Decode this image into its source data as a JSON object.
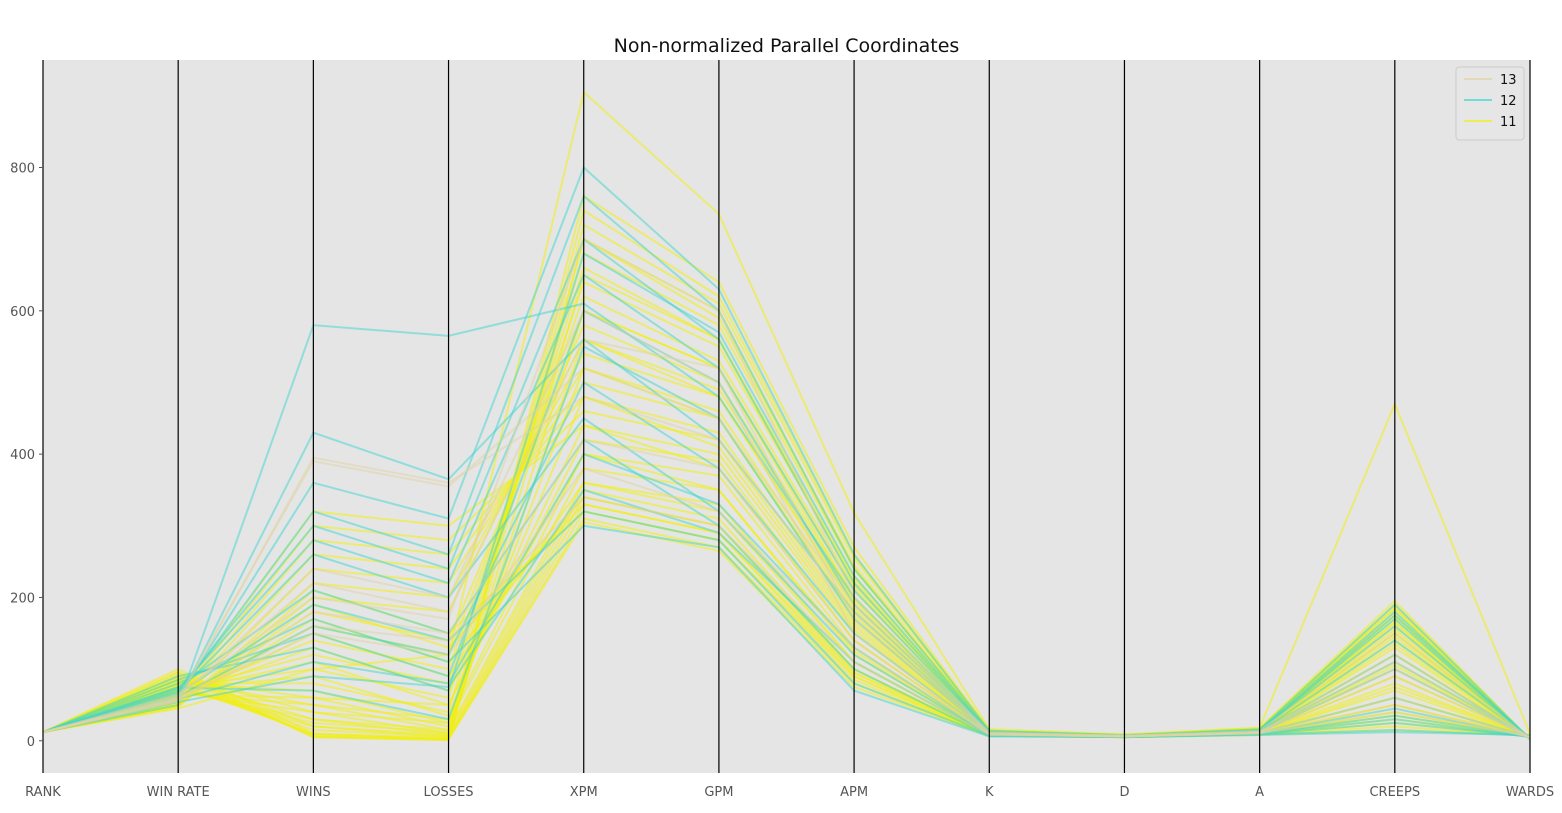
{
  "chart_data": {
    "type": "parallel-coordinates",
    "title": "Non-normalized Parallel Coordinates",
    "axes": [
      "RANK",
      "WIN RATE",
      "WINS",
      "LOSSES",
      "XPM",
      "GPM",
      "APM",
      "K",
      "D",
      "A",
      "CREEPS",
      "WARDS"
    ],
    "ylim": [
      -45,
      950
    ],
    "yticks": [
      0,
      200,
      400,
      600,
      800
    ],
    "grid": false,
    "legend_position": "top-right",
    "series": [
      {
        "name": "13",
        "color": "#e0d3a3",
        "lines": [
          [
            12,
            55,
            395,
            360,
            480,
            420,
            180,
            10,
            6,
            12,
            110,
            4
          ],
          [
            12,
            60,
            390,
            355,
            520,
            450,
            190,
            11,
            7,
            12,
            120,
            4
          ],
          [
            12,
            58,
            240,
            200,
            600,
            500,
            150,
            9,
            6,
            11,
            90,
            5
          ],
          [
            12,
            62,
            220,
            180,
            560,
            520,
            170,
            10,
            7,
            12,
            100,
            4
          ],
          [
            12,
            57,
            180,
            150,
            420,
            380,
            140,
            9,
            6,
            11,
            60,
            5
          ],
          [
            12,
            65,
            200,
            170,
            700,
            600,
            200,
            12,
            7,
            14,
            150,
            3
          ],
          [
            12,
            55,
            160,
            140,
            340,
            300,
            110,
            8,
            6,
            10,
            40,
            6
          ],
          [
            12,
            59,
            150,
            120,
            380,
            320,
            130,
            9,
            6,
            11,
            50,
            5
          ]
        ]
      },
      {
        "name": "12",
        "color": "#3dd6d0",
        "lines": [
          [
            12,
            50,
            580,
            565,
            610,
            480,
            200,
            11,
            7,
            13,
            120,
            3
          ],
          [
            12,
            55,
            430,
            365,
            560,
            420,
            180,
            10,
            6,
            12,
            110,
            4
          ],
          [
            12,
            60,
            360,
            310,
            800,
            630,
            260,
            14,
            8,
            16,
            190,
            2
          ],
          [
            12,
            65,
            320,
            260,
            760,
            600,
            240,
            13,
            7,
            15,
            180,
            2
          ],
          [
            12,
            70,
            300,
            240,
            700,
            560,
            220,
            12,
            7,
            14,
            170,
            3
          ],
          [
            12,
            72,
            280,
            220,
            650,
            520,
            210,
            12,
            7,
            14,
            160,
            3
          ],
          [
            12,
            68,
            260,
            200,
            450,
            320,
            120,
            8,
            6,
            10,
            30,
            5
          ],
          [
            12,
            75,
            210,
            150,
            420,
            300,
            100,
            7,
            5,
            9,
            25,
            6
          ],
          [
            12,
            66,
            190,
            140,
            320,
            280,
            80,
            7,
            5,
            9,
            15,
            7
          ],
          [
            12,
            80,
            170,
            110,
            300,
            270,
            70,
            6,
            5,
            8,
            12,
            8
          ],
          [
            12,
            62,
            160,
            120,
            500,
            380,
            150,
            9,
            6,
            11,
            60,
            5
          ],
          [
            12,
            85,
            150,
            90,
            600,
            500,
            190,
            11,
            7,
            13,
            140,
            4
          ],
          [
            12,
            90,
            130,
            70,
            680,
            570,
            230,
            12,
            7,
            14,
            175,
            3
          ],
          [
            12,
            58,
            110,
            80,
            400,
            330,
            130,
            8,
            6,
            10,
            45,
            5
          ],
          [
            12,
            54,
            90,
            75,
            350,
            290,
            110,
            8,
            6,
            10,
            35,
            6
          ],
          [
            12,
            74,
            70,
            30,
            550,
            450,
            170,
            10,
            6,
            12,
            100,
            4
          ]
        ]
      },
      {
        "name": "11",
        "color": "#f0ee12",
        "lines": [
          [
            12,
            45,
            100,
            120,
            905,
            735,
            318,
            16,
            9,
            18,
            470,
            10
          ],
          [
            12,
            100,
            10,
            2,
            760,
            640,
            270,
            15,
            8,
            18,
            195,
            2
          ],
          [
            12,
            95,
            20,
            5,
            740,
            620,
            260,
            14,
            8,
            17,
            190,
            2
          ],
          [
            12,
            90,
            40,
            10,
            720,
            610,
            255,
            14,
            8,
            17,
            185,
            2
          ],
          [
            12,
            85,
            60,
            20,
            700,
            590,
            245,
            13,
            8,
            16,
            180,
            3
          ],
          [
            12,
            80,
            80,
            40,
            680,
            580,
            240,
            13,
            7,
            16,
            175,
            3
          ],
          [
            12,
            75,
            100,
            60,
            660,
            560,
            230,
            13,
            7,
            15,
            170,
            3
          ],
          [
            12,
            70,
            120,
            80,
            640,
            550,
            225,
            12,
            7,
            15,
            165,
            3
          ],
          [
            12,
            65,
            140,
            100,
            620,
            530,
            215,
            12,
            7,
            14,
            160,
            4
          ],
          [
            12,
            60,
            160,
            120,
            600,
            520,
            210,
            12,
            7,
            14,
            155,
            4
          ],
          [
            12,
            55,
            180,
            140,
            580,
            500,
            200,
            11,
            7,
            13,
            150,
            4
          ],
          [
            12,
            50,
            200,
            180,
            560,
            490,
            195,
            11,
            7,
            13,
            145,
            4
          ],
          [
            12,
            48,
            220,
            200,
            540,
            480,
            190,
            11,
            6,
            13,
            140,
            4
          ],
          [
            12,
            52,
            240,
            220,
            520,
            460,
            180,
            10,
            6,
            12,
            130,
            4
          ],
          [
            12,
            56,
            260,
            240,
            500,
            450,
            175,
            10,
            6,
            12,
            120,
            5
          ],
          [
            12,
            58,
            280,
            260,
            480,
            430,
            165,
            10,
            6,
            12,
            110,
            5
          ],
          [
            12,
            60,
            300,
            280,
            460,
            420,
            160,
            9,
            6,
            11,
            100,
            5
          ],
          [
            12,
            62,
            320,
            300,
            440,
            400,
            150,
            9,
            6,
            11,
            90,
            5
          ],
          [
            12,
            64,
            60,
            50,
            420,
            390,
            140,
            9,
            6,
            11,
            80,
            5
          ],
          [
            12,
            66,
            50,
            30,
            400,
            370,
            130,
            9,
            6,
            10,
            70,
            5
          ],
          [
            12,
            68,
            40,
            25,
            380,
            350,
            120,
            8,
            6,
            10,
            60,
            6
          ],
          [
            12,
            70,
            30,
            15,
            360,
            330,
            110,
            8,
            6,
            10,
            50,
            6
          ],
          [
            12,
            72,
            25,
            12,
            350,
            310,
            100,
            8,
            6,
            10,
            40,
            6
          ],
          [
            12,
            74,
            20,
            8,
            340,
            300,
            95,
            8,
            5,
            9,
            35,
            6
          ],
          [
            12,
            76,
            15,
            6,
            330,
            290,
            90,
            7,
            5,
            9,
            30,
            7
          ],
          [
            12,
            78,
            10,
            4,
            320,
            280,
            85,
            7,
            5,
            9,
            25,
            7
          ],
          [
            12,
            82,
            8,
            3,
            310,
            270,
            80,
            7,
            5,
            9,
            20,
            7
          ],
          [
            12,
            88,
            6,
            2,
            305,
            265,
            75,
            7,
            5,
            8,
            15,
            8
          ],
          [
            12,
            92,
            5,
            1,
            700,
            600,
            240,
            14,
            8,
            16,
            185,
            2
          ],
          [
            12,
            96,
            5,
            1,
            650,
            560,
            220,
            13,
            7,
            15,
            175,
            3
          ],
          [
            12,
            86,
            30,
            8,
            600,
            520,
            200,
            12,
            7,
            14,
            165,
            3
          ],
          [
            12,
            84,
            50,
            15,
            560,
            480,
            185,
            11,
            7,
            13,
            150,
            4
          ],
          [
            12,
            79,
            70,
            25,
            520,
            450,
            170,
            10,
            6,
            12,
            135,
            4
          ],
          [
            12,
            73,
            90,
            35,
            480,
            410,
            155,
            10,
            6,
            12,
            120,
            5
          ],
          [
            12,
            69,
            110,
            50,
            440,
            380,
            140,
            9,
            6,
            11,
            105,
            5
          ],
          [
            12,
            63,
            130,
            70,
            400,
            350,
            125,
            9,
            6,
            11,
            90,
            5
          ],
          [
            12,
            57,
            150,
            90,
            360,
            320,
            110,
            8,
            6,
            10,
            75,
            6
          ],
          [
            12,
            53,
            170,
            110,
            340,
            300,
            100,
            8,
            6,
            10,
            60,
            6
          ],
          [
            12,
            49,
            190,
            130,
            330,
            290,
            95,
            8,
            5,
            9,
            50,
            6
          ],
          [
            12,
            47,
            210,
            150,
            320,
            280,
            90,
            7,
            5,
            9,
            40,
            7
          ]
        ]
      }
    ]
  }
}
